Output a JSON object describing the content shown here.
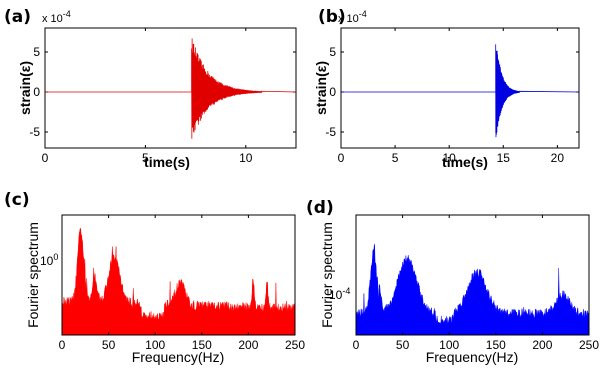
{
  "chart_data": [
    {
      "panel": "(a)",
      "type": "line",
      "color": "#e00000",
      "xlabel": "time(s)",
      "ylabel": "strain(ε)",
      "y_multiplier": "x 10",
      "y_exponent": "-4",
      "xlim": [
        0,
        12.5
      ],
      "ylim": [
        -7,
        8
      ],
      "xticks": [
        0,
        5,
        10
      ],
      "yticks": [
        -5,
        0,
        5
      ],
      "event": {
        "onset_time": 7.3,
        "peak_strain": 7,
        "min_strain": -6.2,
        "decay_end_time": 10.8
      }
    },
    {
      "panel": "(b)",
      "type": "line",
      "color": "#0000e0",
      "xlabel": "time(s)",
      "ylabel": "strain(ε)",
      "y_multiplier": "x 10",
      "y_exponent": "-4",
      "xlim": [
        0,
        22
      ],
      "ylim": [
        -7,
        8
      ],
      "xticks": [
        0,
        5,
        10,
        15,
        20
      ],
      "yticks": [
        -5,
        0,
        5
      ],
      "event": {
        "onset_time": 14.3,
        "peak_strain": 7,
        "min_strain": -6.5,
        "decay_end_time": 16.5
      }
    },
    {
      "panel": "(c)",
      "type": "area",
      "color": "#ff0000",
      "xlabel": "Frequency(Hz)",
      "ylabel": "Fourier spectrum",
      "scale": "log",
      "xlim": [
        0,
        250
      ],
      "xticks": [
        0,
        50,
        100,
        150,
        200,
        250
      ],
      "ytick_label_base": "10",
      "ytick_label_exp": "0",
      "peaks_hz": [
        20,
        35,
        56,
        127,
        205,
        220
      ]
    },
    {
      "panel": "(d)",
      "type": "area",
      "color": "#0000ff",
      "xlabel": "Frequency(Hz)",
      "ylabel": "Fourier spectrum",
      "scale": "log",
      "xlim": [
        0,
        250
      ],
      "xticks": [
        0,
        50,
        100,
        150,
        200,
        250
      ],
      "ytick_label_base": "10",
      "ytick_label_exp": "-4",
      "peaks_hz": [
        20,
        55,
        130,
        222
      ]
    }
  ]
}
